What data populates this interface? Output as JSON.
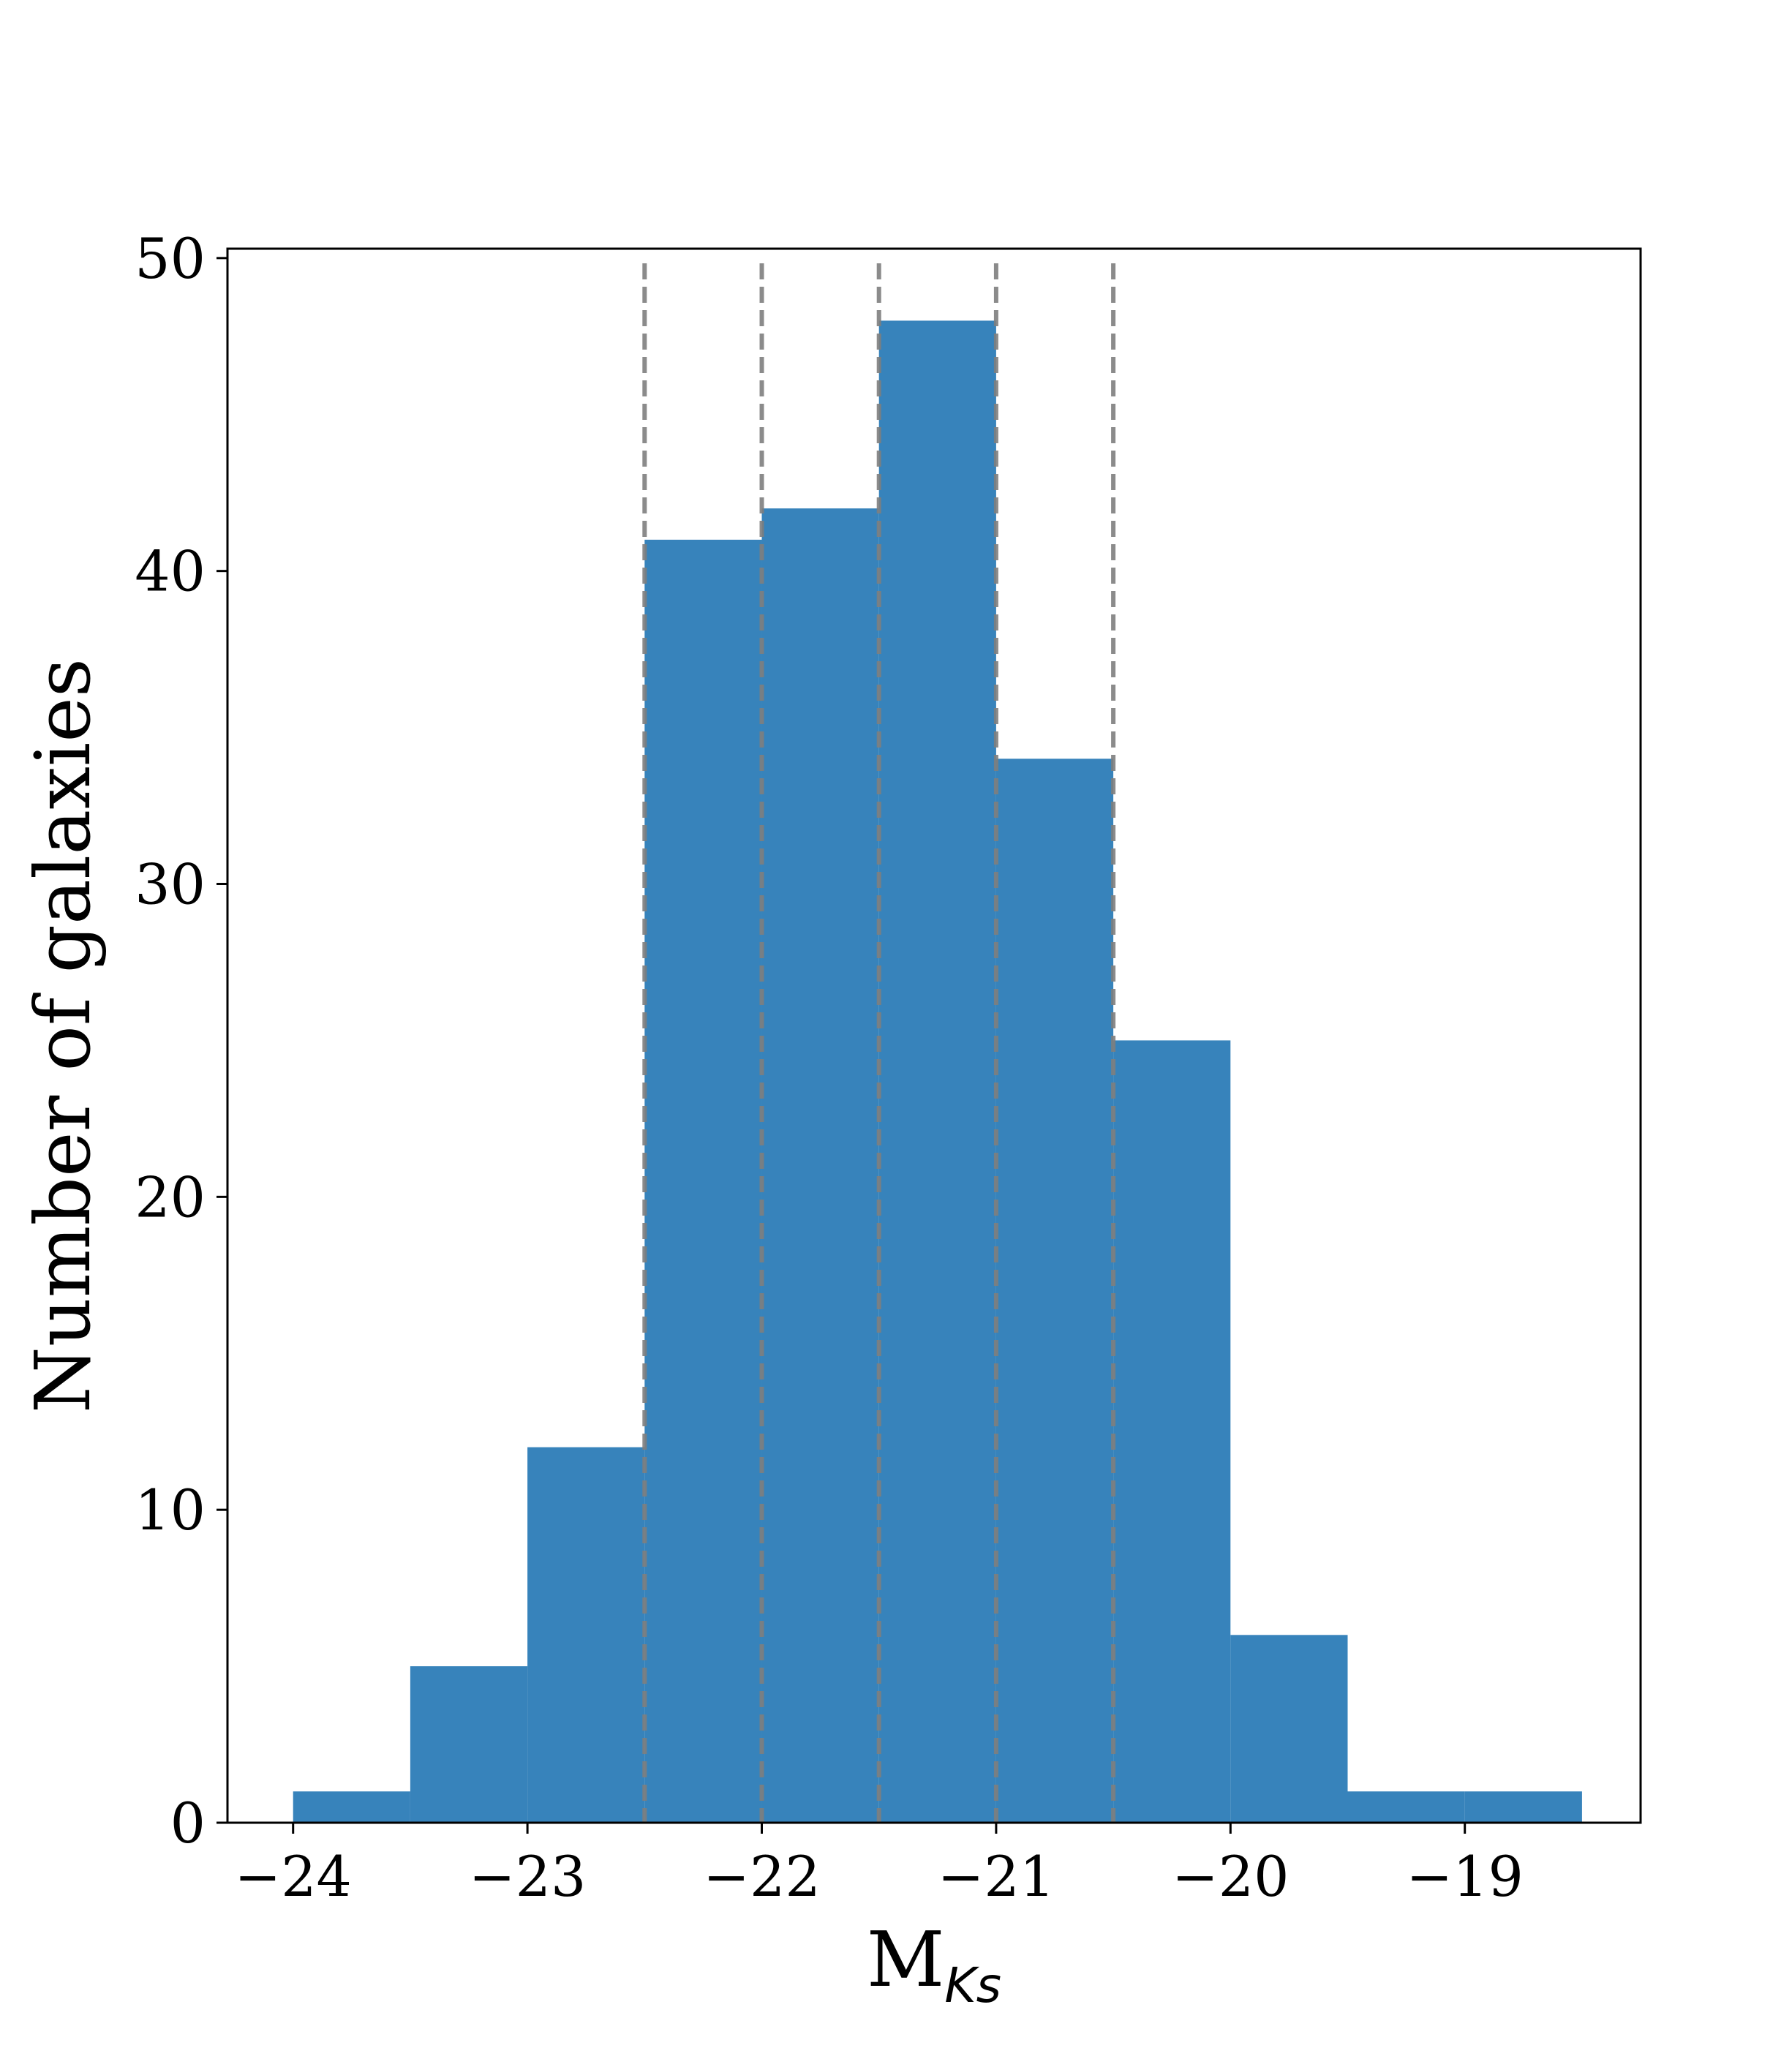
{
  "chart_data": {
    "type": "bar",
    "title": "",
    "xlabel": "M",
    "xlabel_subscript": "Ks",
    "ylabel": "Number of galaxies",
    "xlim": [
      -24.28,
      -18.25
    ],
    "ylim": [
      0,
      50.3
    ],
    "x_ticks": [
      -24,
      -23,
      -22,
      -21,
      -20,
      -19
    ],
    "x_tick_labels": [
      "−24",
      "−23",
      "−22",
      "−21",
      "−20",
      "−19"
    ],
    "y_ticks": [
      0,
      10,
      20,
      30,
      40,
      50
    ],
    "y_tick_labels": [
      "0",
      "10",
      "20",
      "30",
      "40",
      "50"
    ],
    "bin_edges": [
      -24.0,
      -23.5,
      -23.0,
      -22.5,
      -22.0,
      -21.5,
      -21.0,
      -20.5,
      -20.0,
      -19.5,
      -19.0,
      -18.5
    ],
    "series": [
      {
        "values": [
          1,
          5,
          12,
          41,
          42,
          48,
          34,
          25,
          6,
          1,
          1
        ]
      }
    ],
    "reference_lines_x": [
      -22.5,
      -22.0,
      -21.5,
      -21.0,
      -20.5
    ],
    "reference_line_style": "dashed",
    "grid": false,
    "legend": "none",
    "colors": {
      "bar": "#3783bb",
      "reference_line": "#7f7f7f",
      "axis": "#000000"
    }
  }
}
